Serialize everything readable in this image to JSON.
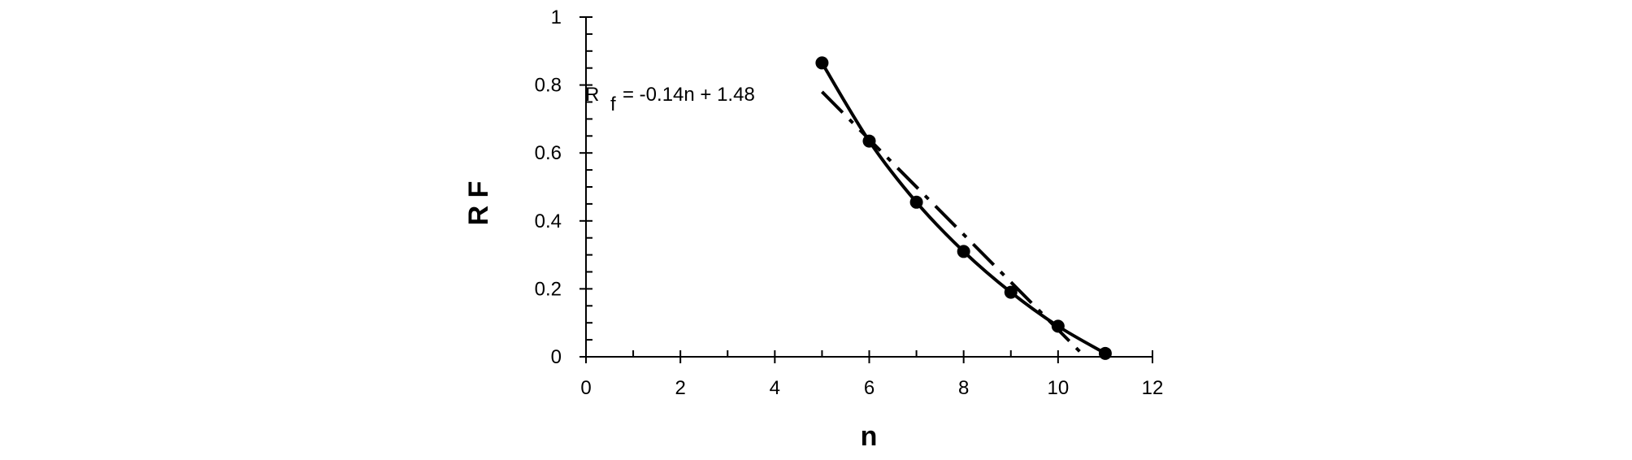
{
  "chart_data": {
    "type": "line",
    "x_label": "n",
    "y_label": "R F",
    "annotation": {
      "main": "R",
      "sub": "f",
      "rest": "= -0.14n + 1.48"
    },
    "x": [
      5,
      6,
      7,
      8,
      9,
      10,
      11
    ],
    "series": [
      {
        "color": "#000000",
        "values": [
          0.865,
          0.635,
          0.455,
          0.31,
          0.19,
          0.09,
          0.01
        ]
      }
    ],
    "trendline": {
      "x": [
        5,
        10.57
      ],
      "values": [
        0.78,
        0
      ],
      "color": "#000000"
    },
    "xlim": [
      0,
      12
    ],
    "ylim": [
      0,
      1
    ],
    "xticks": [
      0,
      2,
      4,
      6,
      8,
      10,
      12
    ],
    "yticks": [
      0,
      0.2,
      0.4,
      0.6,
      0.8,
      1
    ],
    "xminorticks": [
      1,
      3,
      5,
      7,
      9,
      11
    ],
    "yminorticks": [
      0.05,
      0.1,
      0.15,
      0.25,
      0.3,
      0.35,
      0.45,
      0.5,
      0.55,
      0.65,
      0.7,
      0.75,
      0.85,
      0.9,
      0.95
    ],
    "grid": false
  }
}
